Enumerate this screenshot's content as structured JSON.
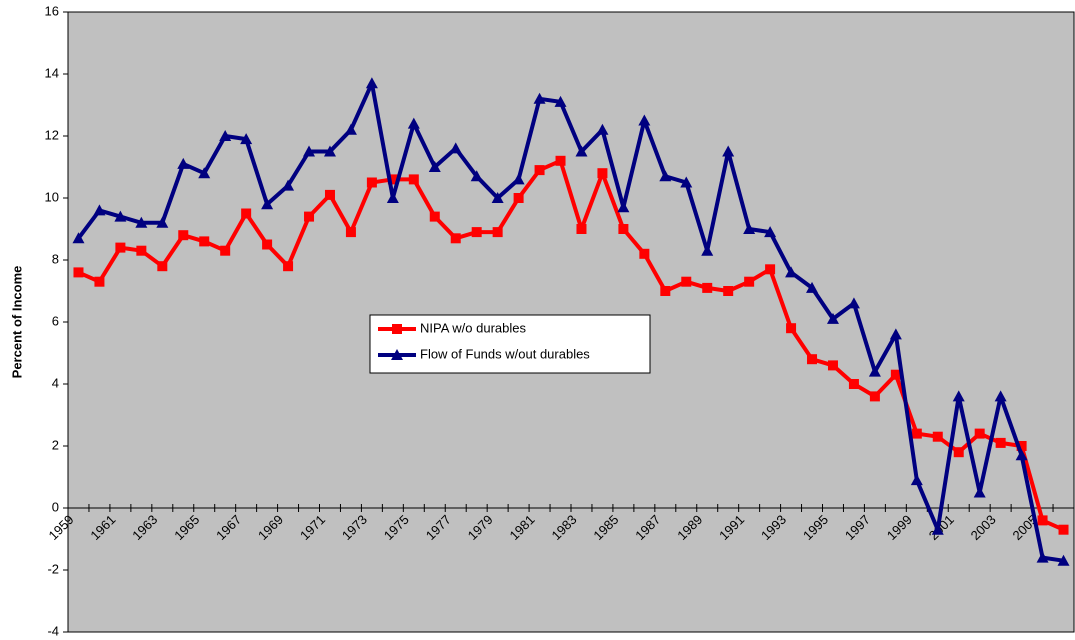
{
  "chart_data": {
    "type": "line",
    "y_label": "Percent of Income",
    "categories": [
      "1959",
      null,
      "1961",
      null,
      "1963",
      null,
      "1965",
      null,
      "1967",
      null,
      "1969",
      null,
      "1971",
      null,
      "1973",
      null,
      "1975",
      null,
      "1977",
      null,
      "1979",
      null,
      "1981",
      null,
      "1983",
      null,
      "1985",
      null,
      "1987",
      null,
      "1989",
      null,
      "1991",
      null,
      "1993",
      null,
      "1995",
      null,
      "1997",
      null,
      "1999",
      null,
      "2001",
      null,
      "2003",
      null,
      "2005",
      null
    ],
    "series": [
      {
        "name": "NIPA w/o durables",
        "color": "#ff0000",
        "marker": "square",
        "values": [
          7.6,
          7.3,
          8.4,
          8.3,
          7.8,
          8.8,
          8.6,
          8.3,
          9.5,
          8.5,
          7.8,
          9.4,
          10.1,
          8.9,
          10.5,
          10.6,
          10.6,
          9.4,
          8.7,
          8.9,
          8.9,
          10.0,
          10.9,
          11.2,
          9.0,
          10.8,
          9.0,
          8.2,
          7.0,
          7.3,
          7.1,
          7.0,
          7.3,
          7.7,
          5.8,
          4.8,
          4.6,
          4.0,
          3.6,
          4.3,
          2.4,
          2.3,
          1.8,
          2.4,
          2.1,
          2.0,
          -0.4,
          -0.7
        ]
      },
      {
        "name": "Flow of Funds w/out durables",
        "color": "#000080",
        "marker": "triangle",
        "values": [
          8.7,
          9.6,
          9.4,
          9.2,
          9.2,
          11.1,
          10.8,
          12.0,
          11.9,
          9.8,
          10.4,
          11.5,
          11.5,
          12.2,
          13.7,
          10.0,
          12.4,
          11.0,
          11.6,
          10.7,
          10.0,
          10.6,
          13.2,
          13.1,
          11.5,
          12.2,
          9.7,
          12.5,
          10.7,
          10.5,
          8.3,
          11.5,
          9.0,
          8.9,
          7.6,
          7.1,
          6.1,
          6.6,
          4.4,
          5.6,
          0.9,
          -0.7,
          3.6,
          0.5,
          3.6,
          1.7,
          -1.6,
          -1.7
        ]
      }
    ],
    "ylim": [
      -4,
      16
    ],
    "yticks": [
      -4,
      -2,
      0,
      2,
      4,
      6,
      8,
      10,
      12,
      14,
      16
    ],
    "grid": false,
    "plot_background": "#c0c0c0"
  }
}
